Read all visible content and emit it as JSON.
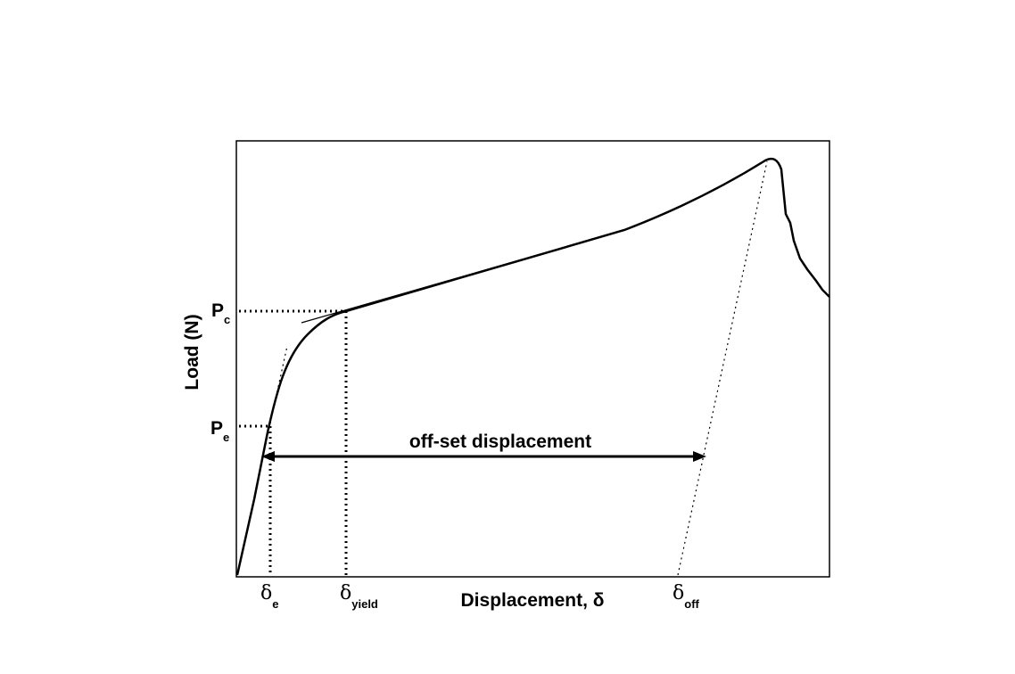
{
  "axes": {
    "y_label": "Load (N)",
    "x_label": "Displacement, δ"
  },
  "load_labels": [
    {
      "symbol": "P",
      "subscript": "c"
    },
    {
      "symbol": "P",
      "subscript": "e"
    }
  ],
  "displacement_labels": [
    {
      "symbol": "δ",
      "subscript": "e"
    },
    {
      "symbol": "δ",
      "subscript": "yield"
    },
    {
      "symbol": "δ",
      "subscript": "off"
    }
  ],
  "annotation": "off-set displacement"
}
